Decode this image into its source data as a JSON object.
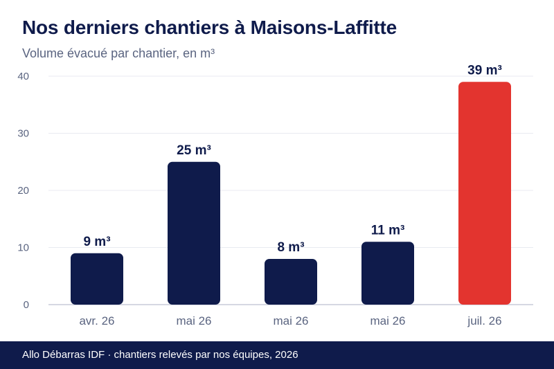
{
  "header": {
    "title": "Nos derniers chantiers à Maisons-Laffitte",
    "subtitle": "Volume évacué par chantier, en m³"
  },
  "footer": {
    "text": "Allo Débarras IDF · chantiers relevés par nos équipes, 2026"
  },
  "chart_data": {
    "type": "bar",
    "title": "Nos derniers chantiers à Maisons-Laffitte",
    "subtitle": "Volume évacué par chantier, en m³",
    "xlabel": "",
    "ylabel": "",
    "categories": [
      "avr. 26",
      "mai 26",
      "mai 26",
      "mai 26",
      "juil. 26"
    ],
    "values": [
      9,
      25,
      8,
      11,
      39
    ],
    "value_labels": [
      "9 m³",
      "25 m³",
      "8 m³",
      "11 m³",
      "39 m³"
    ],
    "yticks": [
      0,
      10,
      20,
      30,
      40
    ],
    "ylim": [
      0,
      40
    ],
    "grid": true,
    "colors": {
      "bar": "#0f1b4b",
      "highlight": "#e3342f",
      "axis_text": "#5a6480",
      "grid": "#e8eaf0",
      "baseline": "#c8ccd8"
    },
    "highlight_index": 4
  }
}
